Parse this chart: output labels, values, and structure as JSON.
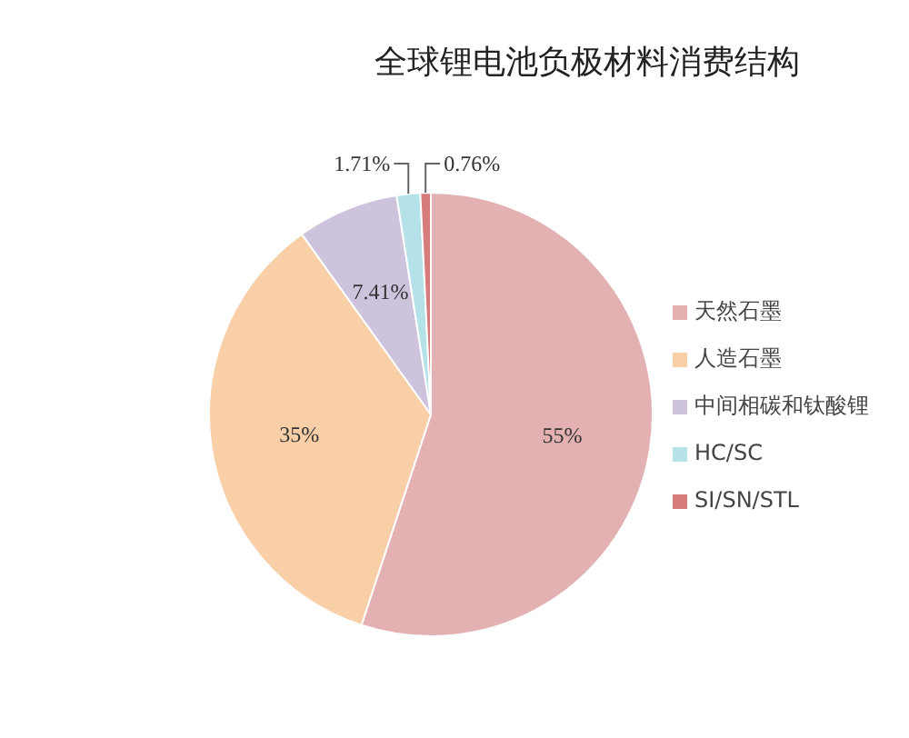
{
  "chart_data": {
    "type": "pie",
    "title": "全球锂电池负极材料消费结构",
    "categories": [
      "天然石墨",
      "人造石墨",
      "中间相碳和钛酸锂",
      "HC/SC",
      "SI/SN/STL"
    ],
    "values": [
      55,
      35,
      7.41,
      1.71,
      0.76
    ],
    "colors": [
      "#e3b1b1",
      "#f9cfa8",
      "#cdc3dd",
      "#b5e1e8",
      "#d77b7b"
    ],
    "value_labels": [
      "55%",
      "35%",
      "7.41%",
      "1.71%",
      "0.76%"
    ],
    "legend": "right"
  }
}
